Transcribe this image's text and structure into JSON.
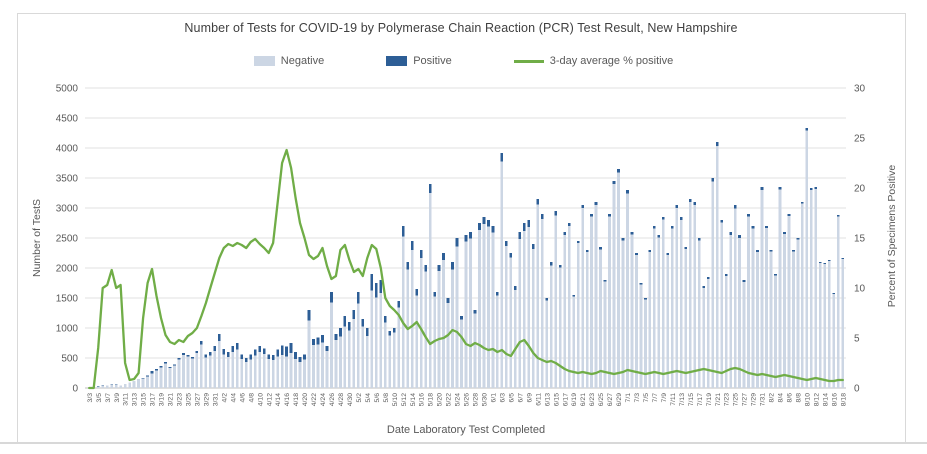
{
  "chart": {
    "title": "Number of Tests for COVID-19 by Polymerase Chain Reaction (PCR) Test Result, New Hampshire",
    "x_axis_title": "Date Laboratory Test Completed",
    "y_axis_left_title": "Number of TestS",
    "y_axis_right_title": "Percent of Specimens Positive"
  },
  "legend": {
    "items": [
      {
        "label": "Negative",
        "color": "#ccd6e4",
        "type": "swatch"
      },
      {
        "label": "Positive",
        "color": "#2d5e96",
        "type": "swatch"
      },
      {
        "label": "3-day average % positive",
        "color": "#70ad47",
        "type": "line"
      }
    ]
  },
  "colors": {
    "negative_bar": "#ccd6e4",
    "positive_bar": "#2d5e96",
    "pct_line": "#70ad47",
    "gridline": "#e2e2e2",
    "axis_line": "#bfbfbf",
    "text": "#595959"
  },
  "chart_data": {
    "type": "bar",
    "subtype": "stacked-bars-with-percent-line",
    "title": "Number of Tests for COVID-19 by Polymerase Chain Reaction (PCR) Test Result, New Hampshire",
    "xlabel": "Date Laboratory Test Completed",
    "ylabel_left": "Number of TestS",
    "ylabel_right": "Percent of Specimens Positive",
    "left_axis": {
      "min": 0,
      "max": 5000,
      "step": 500
    },
    "right_axis": {
      "min": 0,
      "max": 30,
      "step": 5
    },
    "x_tick_every": 2,
    "grid": "horizontal",
    "legend_position": "top",
    "series": [
      {
        "name": "Negative",
        "role": "bar-bottom",
        "color": "#ccd6e4",
        "axis": "left"
      },
      {
        "name": "Positive",
        "role": "bar-top",
        "color": "#2d5e96",
        "axis": "left"
      },
      {
        "name": "3-day average % positive",
        "role": "line",
        "color": "#70ad47",
        "axis": "right"
      }
    ],
    "categories": [
      "3/3",
      "3/4",
      "3/5",
      "3/6",
      "3/7",
      "3/8",
      "3/9",
      "3/10",
      "3/11",
      "3/12",
      "3/13",
      "3/14",
      "3/15",
      "3/16",
      "3/17",
      "3/18",
      "3/19",
      "3/20",
      "3/21",
      "3/22",
      "3/23",
      "3/24",
      "3/25",
      "3/26",
      "3/27",
      "3/28",
      "3/29",
      "3/30",
      "3/31",
      "4/1",
      "4/2",
      "4/3",
      "4/4",
      "4/5",
      "4/6",
      "4/7",
      "4/8",
      "4/9",
      "4/10",
      "4/11",
      "4/12",
      "4/13",
      "4/14",
      "4/15",
      "4/16",
      "4/17",
      "4/18",
      "4/19",
      "4/20",
      "4/21",
      "4/22",
      "4/23",
      "4/24",
      "4/25",
      "4/26",
      "4/27",
      "4/28",
      "4/29",
      "4/30",
      "5/1",
      "5/2",
      "5/3",
      "5/4",
      "5/5",
      "5/6",
      "5/7",
      "5/8",
      "5/9",
      "5/10",
      "5/11",
      "5/12",
      "5/13",
      "5/14",
      "5/15",
      "5/16",
      "5/17",
      "5/18",
      "5/19",
      "5/20",
      "5/21",
      "5/22",
      "5/23",
      "5/24",
      "5/25",
      "5/26",
      "5/27",
      "5/28",
      "5/29",
      "5/30",
      "5/31",
      "6/1",
      "6/2",
      "6/3",
      "6/4",
      "6/5",
      "6/6",
      "6/7",
      "6/8",
      "6/9",
      "6/10",
      "6/11",
      "6/12",
      "6/13",
      "6/14",
      "6/15",
      "6/16",
      "6/17",
      "6/18",
      "6/19",
      "6/20",
      "6/21",
      "6/22",
      "6/23",
      "6/24",
      "6/25",
      "6/26",
      "6/27",
      "6/28",
      "6/29",
      "6/30",
      "7/1",
      "7/2",
      "7/3",
      "7/4",
      "7/5",
      "7/6",
      "7/7",
      "7/8",
      "7/9",
      "7/10",
      "7/11",
      "7/12",
      "7/13",
      "7/14",
      "7/15",
      "7/16",
      "7/17",
      "7/18",
      "7/19",
      "7/20",
      "7/21",
      "7/22",
      "7/23",
      "7/24",
      "7/25",
      "7/26",
      "7/27",
      "7/28",
      "7/29",
      "7/30",
      "7/31",
      "8/1",
      "8/2",
      "8/3",
      "8/4",
      "8/5",
      "8/6",
      "8/7",
      "8/8",
      "8/9",
      "8/10",
      "8/11",
      "8/12",
      "8/13",
      "8/14",
      "8/15",
      "8/16",
      "8/17",
      "8/18"
    ],
    "total_tests": [
      10,
      15,
      30,
      40,
      45,
      55,
      60,
      45,
      70,
      90,
      120,
      150,
      165,
      210,
      280,
      320,
      370,
      430,
      350,
      390,
      500,
      580,
      550,
      520,
      620,
      780,
      560,
      600,
      700,
      900,
      650,
      600,
      700,
      750,
      560,
      500,
      560,
      640,
      700,
      660,
      560,
      550,
      640,
      710,
      690,
      750,
      600,
      520,
      560,
      1300,
      820,
      840,
      880,
      700,
      1600,
      900,
      1000,
      1200,
      1100,
      1300,
      1600,
      1150,
      1000,
      1900,
      1750,
      1800,
      1200,
      950,
      1000,
      1450,
      2700,
      2100,
      2450,
      1650,
      2300,
      2050,
      3400,
      1600,
      2050,
      2250,
      1500,
      2100,
      2500,
      1200,
      2550,
      2600,
      1300,
      2750,
      2850,
      2800,
      2700,
      1600,
      3920,
      2450,
      2250,
      1700,
      2600,
      2750,
      2800,
      2400,
      3150,
      2900,
      1500,
      2100,
      2950,
      2050,
      2600,
      2750,
      1550,
      2450,
      3050,
      2300,
      2900,
      3100,
      2350,
      1800,
      2900,
      3450,
      3650,
      2500,
      3300,
      2600,
      2250,
      1750,
      1500,
      2300,
      2700,
      2550,
      2850,
      2250,
      2700,
      3050,
      2850,
      2350,
      3150,
      3100,
      2500,
      1700,
      1850,
      3500,
      4100,
      2800,
      1900,
      2600,
      3050,
      2550,
      1800,
      2900,
      2700,
      2300,
      3350,
      2700,
      2300,
      1900,
      3350,
      2600,
      2900,
      2300,
      2500,
      3100,
      4330,
      3330,
      3350,
      2100,
      2080,
      2130,
      1580,
      2880,
      2170
    ],
    "positive": [
      0,
      0,
      1,
      4,
      5,
      6,
      6,
      5,
      2,
      1,
      1,
      2,
      10,
      20,
      35,
      30,
      26,
      23,
      16,
      17,
      24,
      27,
      29,
      29,
      37,
      56,
      48,
      60,
      80,
      117,
      91,
      86,
      99,
      109,
      80,
      70,
      82,
      95,
      101,
      92,
      76,
      80,
      118,
      160,
      164,
      165,
      114,
      86,
      84,
      173,
      106,
      111,
      123,
      85,
      174,
      101,
      138,
      172,
      141,
      151,
      190,
      129,
      130,
      272,
      243,
      216,
      108,
      78,
      78,
      106,
      176,
      124,
      152,
      109,
      136,
      105,
      150,
      75,
      100,
      113,
      80,
      122,
      140,
      61,
      112,
      109,
      59,
      118,
      114,
      106,
      105,
      58,
      149,
      83,
      72,
      66,
      120,
      132,
      118,
      84,
      95,
      81,
      39,
      57,
      74,
      45,
      49,
      47,
      25,
      37,
      49,
      35,
      41,
      47,
      40,
      29,
      44,
      48,
      55,
      40,
      59,
      44,
      36,
      26,
      21,
      35,
      43,
      38,
      40,
      34,
      43,
      52,
      46,
      35,
      50,
      53,
      45,
      32,
      33,
      60,
      66,
      42,
      32,
      49,
      61,
      48,
      31,
      44,
      38,
      30,
      47,
      35,
      28,
      21,
      40,
      34,
      35,
      25,
      25,
      28,
      35,
      30,
      34,
      19,
      17,
      15,
      11,
      23,
      17
    ],
    "pct_positive_3day": [
      0,
      0,
      4,
      10,
      10.3,
      11.8,
      10,
      10.3,
      2.5,
      0.8,
      0.9,
      1.5,
      7,
      10.5,
      11.9,
      9.2,
      7,
      5.3,
      4.6,
      4.4,
      4.8,
      4.6,
      5.2,
      5.5,
      6,
      7.2,
      8.5,
      10,
      11.5,
      13,
      14,
      14.4,
      14.2,
      14.5,
      14.3,
      14,
      14.6,
      14.9,
      14.4,
      14,
      13.5,
      14.5,
      18.5,
      22.5,
      23.8,
      22,
      19,
      16.5,
      15,
      13.3,
      12.9,
      13.2,
      14,
      12.2,
      10.9,
      11.2,
      13.8,
      14.3,
      12.8,
      11.6,
      11.9,
      11.2,
      13,
      14.3,
      13.9,
      12,
      9,
      8.2,
      7.8,
      7.3,
      6.5,
      5.9,
      6.2,
      6.6,
      5.9,
      5.1,
      4.4,
      4.7,
      4.9,
      5,
      5.3,
      5.8,
      5.6,
      5.1,
      4.4,
      4.2,
      4.5,
      4.3,
      4,
      3.8,
      3.9,
      3.6,
      3.8,
      3.4,
      3.2,
      3.9,
      4.6,
      4.8,
      4.2,
      3.5,
      3,
      2.8,
      2.6,
      2.7,
      2.5,
      2.2,
      1.9,
      1.7,
      1.6,
      1.5,
      1.6,
      1.5,
      1.4,
      1.5,
      1.7,
      1.6,
      1.5,
      1.4,
      1.5,
      1.6,
      1.8,
      1.7,
      1.6,
      1.5,
      1.4,
      1.5,
      1.6,
      1.5,
      1.4,
      1.5,
      1.6,
      1.7,
      1.6,
      1.5,
      1.6,
      1.7,
      1.8,
      1.9,
      1.8,
      1.7,
      1.6,
      1.5,
      1.7,
      1.9,
      2,
      1.9,
      1.7,
      1.5,
      1.4,
      1.3,
      1.4,
      1.3,
      1.2,
      1.1,
      1.2,
      1.3,
      1.2,
      1.1,
      1,
      0.9,
      0.8,
      0.9,
      1,
      0.9,
      0.8,
      0.7,
      0.7,
      0.8,
      0.8
    ]
  }
}
